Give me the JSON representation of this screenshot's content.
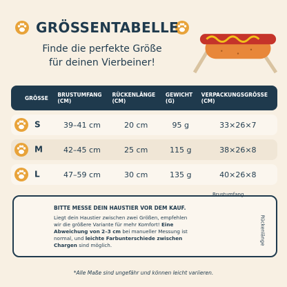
{
  "header": {
    "title": "GRÖSSENTABELLE",
    "subtitle_lines": [
      "Finde die perfekte Größe",
      "für deinen Vierbeiner!"
    ]
  },
  "table": {
    "columns": [
      [
        "GRÖSSE"
      ],
      [
        "BRUSTUMFANG",
        "(CM)"
      ],
      [
        "RÜCKENLÄNGE",
        "(CM)"
      ],
      [
        "GEWICHT",
        "(G)"
      ],
      [
        "VERPACKUNGSGRÖSSE",
        "(CM)"
      ]
    ],
    "rows": [
      [
        "S",
        "39–41 cm",
        "20 cm",
        "95 g",
        "33×26×7"
      ],
      [
        "M",
        "42–45 cm",
        "25 cm",
        "115 g",
        "38×26×8"
      ],
      [
        "L",
        "47–59 cm",
        "30 cm",
        "135 g",
        "40×26×8"
      ]
    ]
  },
  "note": {
    "heading": "BITTE MESSE DEIN HAUSTIER VOR DEM KAUF.",
    "segments": [
      {
        "text": "Liegt dein Haustier zwischen zwei Größen, empfehlen wir die größere Variante für mehr Komfort! ",
        "bold": false
      },
      {
        "text": "Eine Abweichung von 2–3 cm",
        "bold": true
      },
      {
        "text": " bei manueller Messung ist normal, und ",
        "bold": false
      },
      {
        "text": "leichte Farbunterschiede zwischen Chargen",
        "bold": true
      },
      {
        "text": " sind möglich.",
        "bold": false
      }
    ],
    "measure_labels": {
      "chest": "Brustumfang",
      "back": "Rückenlänge"
    }
  },
  "footnote": "*Alle Maße sind ungefähr und können leicht variieren."
}
